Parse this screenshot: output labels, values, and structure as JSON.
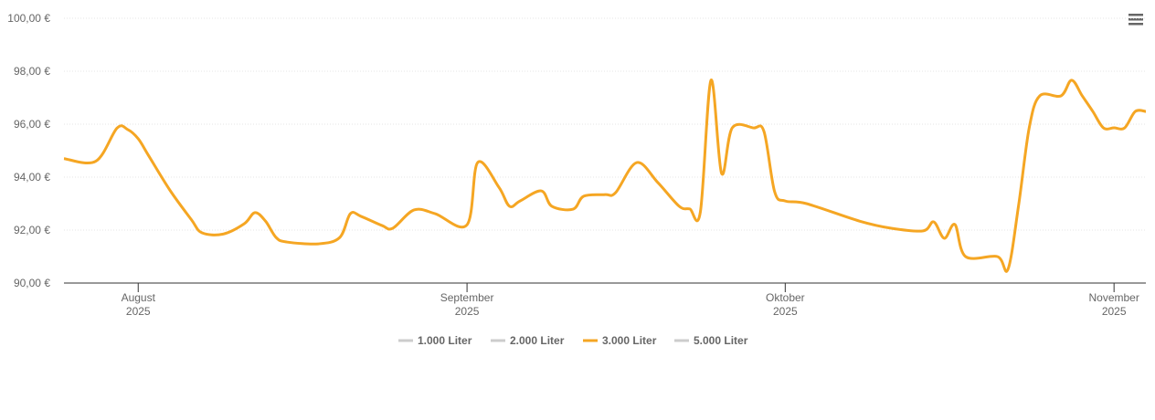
{
  "chart_data": {
    "type": "line",
    "x": [
      "2025-07-25",
      "2025-07-28",
      "2025-07-30",
      "2025-07-31",
      "2025-08-01",
      "2025-08-02",
      "2025-08-04",
      "2025-08-06",
      "2025-08-07",
      "2025-08-09",
      "2025-08-11",
      "2025-08-12",
      "2025-08-13",
      "2025-08-14",
      "2025-08-15",
      "2025-08-18",
      "2025-08-20",
      "2025-08-21",
      "2025-08-22",
      "2025-08-24",
      "2025-08-25",
      "2025-08-27",
      "2025-08-29",
      "2025-09-01",
      "2025-09-02",
      "2025-09-04",
      "2025-09-05",
      "2025-09-06",
      "2025-09-08",
      "2025-09-09",
      "2025-09-11",
      "2025-09-12",
      "2025-09-14",
      "2025-09-15",
      "2025-09-17",
      "2025-09-19",
      "2025-09-21",
      "2025-09-22",
      "2025-09-23",
      "2025-09-24",
      "2025-09-25",
      "2025-09-26",
      "2025-09-28",
      "2025-09-29",
      "2025-09-30",
      "2025-10-01",
      "2025-10-03",
      "2025-10-08",
      "2025-10-11",
      "2025-10-14",
      "2025-10-15",
      "2025-10-16",
      "2025-10-17",
      "2025-10-18",
      "2025-10-21",
      "2025-10-22",
      "2025-10-23",
      "2025-10-24",
      "2025-10-25",
      "2025-10-27",
      "2025-10-28",
      "2025-10-29",
      "2025-10-30",
      "2025-10-31",
      "2025-11-01",
      "2025-11-02",
      "2025-11-03",
      "2025-11-04"
    ],
    "series": [
      {
        "name": "1.000 Liter",
        "color": "#cccccc",
        "visible": false
      },
      {
        "name": "2.000 Liter",
        "color": "#cccccc",
        "visible": false
      },
      {
        "name": "3.000 Liter",
        "color": "#f5a623",
        "visible": true,
        "values": [
          94.7,
          94.6,
          95.85,
          95.8,
          95.45,
          94.8,
          93.5,
          92.4,
          91.9,
          91.85,
          92.24,
          92.66,
          92.34,
          91.72,
          91.55,
          91.48,
          91.72,
          92.62,
          92.52,
          92.17,
          92.07,
          92.76,
          92.62,
          92.2,
          94.55,
          93.62,
          92.9,
          93.1,
          93.48,
          92.9,
          92.79,
          93.28,
          93.34,
          93.41,
          94.55,
          93.79,
          92.9,
          92.8,
          92.69,
          97.66,
          94.14,
          95.86,
          95.86,
          95.72,
          93.45,
          93.1,
          93.0,
          92.34,
          92.07,
          91.97,
          92.31,
          91.69,
          92.21,
          91.0,
          91.0,
          90.52,
          92.93,
          95.86,
          97.07,
          97.07,
          97.66,
          97.07,
          96.48,
          95.86,
          95.86,
          95.86,
          96.48,
          96.48
        ]
      },
      {
        "name": "5.000 Liter",
        "color": "#cccccc",
        "visible": false
      }
    ],
    "xlim": [
      "2025-07-25",
      "2025-11-04"
    ],
    "xticks": [
      {
        "value": "2025-08-01",
        "label": "August 2025"
      },
      {
        "value": "2025-09-01",
        "label": "September 2025"
      },
      {
        "value": "2025-10-01",
        "label": "Oktober 2025"
      },
      {
        "value": "2025-11-01",
        "label": "November 2025"
      }
    ],
    "ylim": [
      90,
      100
    ],
    "yticks": [
      {
        "value": 90,
        "label": "90,00 €"
      },
      {
        "value": 92,
        "label": "92,00 €"
      },
      {
        "value": 94,
        "label": "94,00 €"
      },
      {
        "value": 96,
        "label": "96,00 €"
      },
      {
        "value": 98,
        "label": "98,00 €"
      },
      {
        "value": 100,
        "label": "100,00 €"
      }
    ],
    "grid": true
  }
}
